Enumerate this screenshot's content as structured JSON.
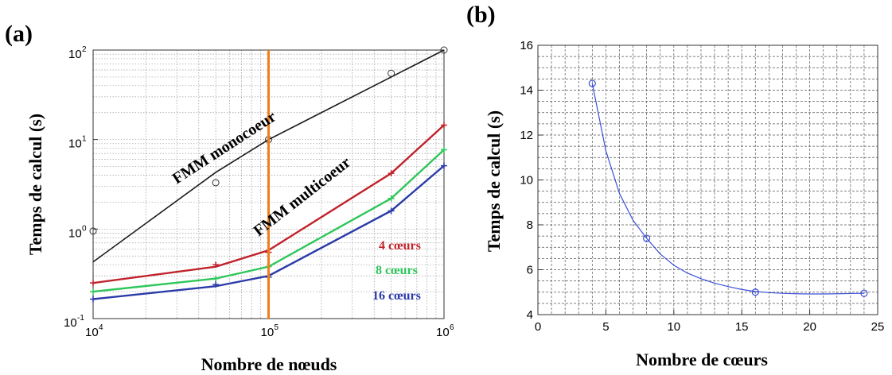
{
  "chart_data": [
    {
      "panel_label": "(a)",
      "type": "line",
      "xlabel": "Nombre de nœuds",
      "ylabel": "Temps de calcul (s)",
      "x_scale": "log",
      "y_scale": "log",
      "xlim": [
        10000,
        1000000
      ],
      "ylim": [
        0.1,
        100
      ],
      "x_ticks": [
        {
          "value": 10000,
          "base": "10",
          "exp": "4"
        },
        {
          "value": 100000,
          "base": "10",
          "exp": "5"
        },
        {
          "value": 1000000,
          "base": "10",
          "exp": "6"
        }
      ],
      "y_ticks": [
        {
          "value": 0.1,
          "base": "10",
          "exp": "-1"
        },
        {
          "value": 1,
          "base": "10",
          "exp": "0"
        },
        {
          "value": 10,
          "base": "10",
          "exp": "1"
        },
        {
          "value": 100,
          "base": "10",
          "exp": "2"
        }
      ],
      "grid": true,
      "vertical_marker": {
        "x": 100000,
        "color": "#f07d1a"
      },
      "series": [
        {
          "color": "#1a1a1a",
          "marker": "circle",
          "x": [
            10000,
            50000,
            100000,
            500000,
            1000000
          ],
          "y_line": [
            0.43,
            4.3,
            10,
            50,
            100
          ],
          "y_markers": [
            0.95,
            3.3,
            10,
            55,
            100
          ]
        },
        {
          "name": "4 cœurs",
          "color": "#c0222b",
          "marker": "plus",
          "x": [
            10000,
            50000,
            100000,
            500000,
            1000000
          ],
          "y_line": [
            0.25,
            0.38,
            0.58,
            4.2,
            14.5
          ],
          "y_markers": [
            0.25,
            0.4,
            0.55,
            4.2,
            14.5
          ]
        },
        {
          "name": "8 cœurs",
          "color": "#2ec65a",
          "marker": "plus",
          "x": [
            10000,
            50000,
            100000,
            500000,
            1000000
          ],
          "y_line": [
            0.2,
            0.28,
            0.38,
            2.2,
            7.7
          ],
          "y_markers": [
            0.2,
            0.28,
            0.38,
            2.2,
            7.7
          ]
        },
        {
          "name": "16 cœurs",
          "color": "#2a3aa8",
          "marker": "plus",
          "x": [
            10000,
            50000,
            100000,
            500000,
            1000000
          ],
          "y_line": [
            0.165,
            0.23,
            0.3,
            1.6,
            5.1
          ],
          "y_markers": [
            0.165,
            0.24,
            0.29,
            1.6,
            5.1
          ]
        }
      ],
      "annotations": [
        {
          "text": "FMM monocoeur"
        },
        {
          "text": "FMM multicoeur"
        }
      ]
    },
    {
      "panel_label": "(b)",
      "type": "line",
      "xlabel": "Nombre de cœurs",
      "ylabel": "Temps de calcul (s)",
      "xlim": [
        0,
        25
      ],
      "ylim": [
        4,
        16
      ],
      "x_ticks": [
        0,
        5,
        10,
        15,
        20,
        25
      ],
      "y_ticks": [
        4,
        6,
        8,
        10,
        12,
        14,
        16
      ],
      "grid": true,
      "series": [
        {
          "color": "#3b4fd8",
          "marker": "circle",
          "x": [
            4,
            8,
            16,
            24
          ],
          "y": [
            14.3,
            7.4,
            5.0,
            4.95
          ],
          "curve_x": [
            4,
            5,
            6,
            7,
            8,
            9,
            10,
            11,
            12,
            13,
            14,
            15,
            16,
            17,
            18,
            19,
            20,
            21,
            22,
            23,
            24
          ],
          "curve_y": [
            14.3,
            11.3,
            9.4,
            8.2,
            7.4,
            6.7,
            6.2,
            5.85,
            5.6,
            5.4,
            5.25,
            5.12,
            5.03,
            4.98,
            4.95,
            4.93,
            4.92,
            4.92,
            4.93,
            4.94,
            4.95
          ]
        }
      ]
    }
  ]
}
